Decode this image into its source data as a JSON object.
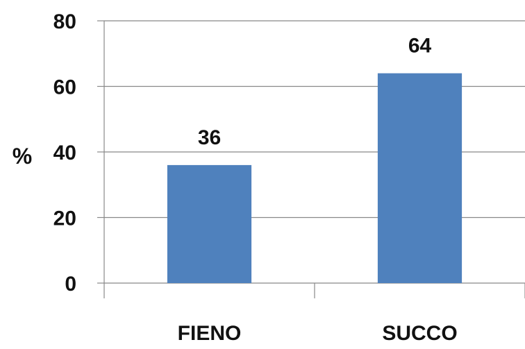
{
  "chart_data": {
    "type": "bar",
    "title": "",
    "xlabel": "",
    "ylabel": "%",
    "categories": [
      "FIENO",
      "SUCCO"
    ],
    "values": [
      36,
      64
    ],
    "data_labels": [
      "36",
      "64"
    ],
    "ylim": [
      0,
      80
    ],
    "yticks": [
      0,
      20,
      40,
      60,
      80
    ],
    "ytick_labels": [
      "0",
      "20",
      "40",
      "60",
      "80"
    ],
    "grid": true,
    "legend": "none",
    "bar_color": "#4f81bd",
    "grid_color": "#888888"
  }
}
